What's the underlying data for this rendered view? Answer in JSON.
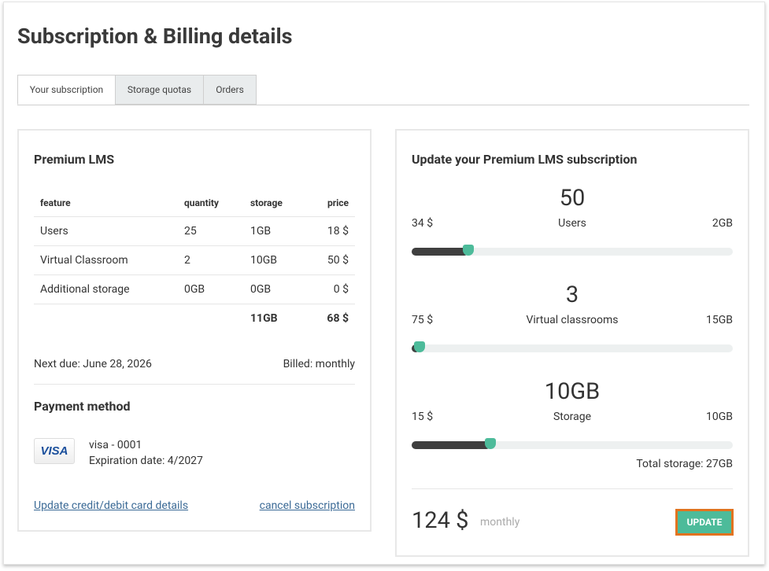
{
  "header": {
    "title": "Subscription & Billing details"
  },
  "tabs": [
    "Your subscription",
    "Storage quotas",
    "Orders"
  ],
  "plan": {
    "title": "Premium LMS",
    "table": {
      "columns": [
        "feature",
        "quantity",
        "storage",
        "price"
      ],
      "rows": [
        [
          "Users",
          "25",
          "1GB",
          "18 $"
        ],
        [
          "Virtual Classroom",
          "2",
          "10GB",
          "50 $"
        ],
        [
          "Additional storage",
          "0GB",
          "0GB",
          "0 $"
        ]
      ],
      "total": [
        "11GB",
        "68 $"
      ]
    },
    "next_due": "Next due: June 28, 2026",
    "billed": "Billed: monthly"
  },
  "payment": {
    "title": "Payment method",
    "card_brand": "VISA",
    "card": "visa - 0001",
    "expiration": "Expiration date: 4/2027",
    "update_link": "Update credit/debit card details",
    "cancel_link": "cancel subscription"
  },
  "update": {
    "title": "Update your Premium LMS subscription",
    "sliders": [
      {
        "value": "50",
        "left": "34 $",
        "label": "Users",
        "right": "2GB"
      },
      {
        "value": "3",
        "left": "75 $",
        "label": "Virtual classrooms",
        "right": "15GB"
      },
      {
        "value": "10GB",
        "left": "15 $",
        "label": "Storage",
        "right": "10GB"
      }
    ],
    "total_storage": "Total storage: 27GB",
    "price": "124 $",
    "period": "monthly",
    "button": "UPDATE"
  }
}
